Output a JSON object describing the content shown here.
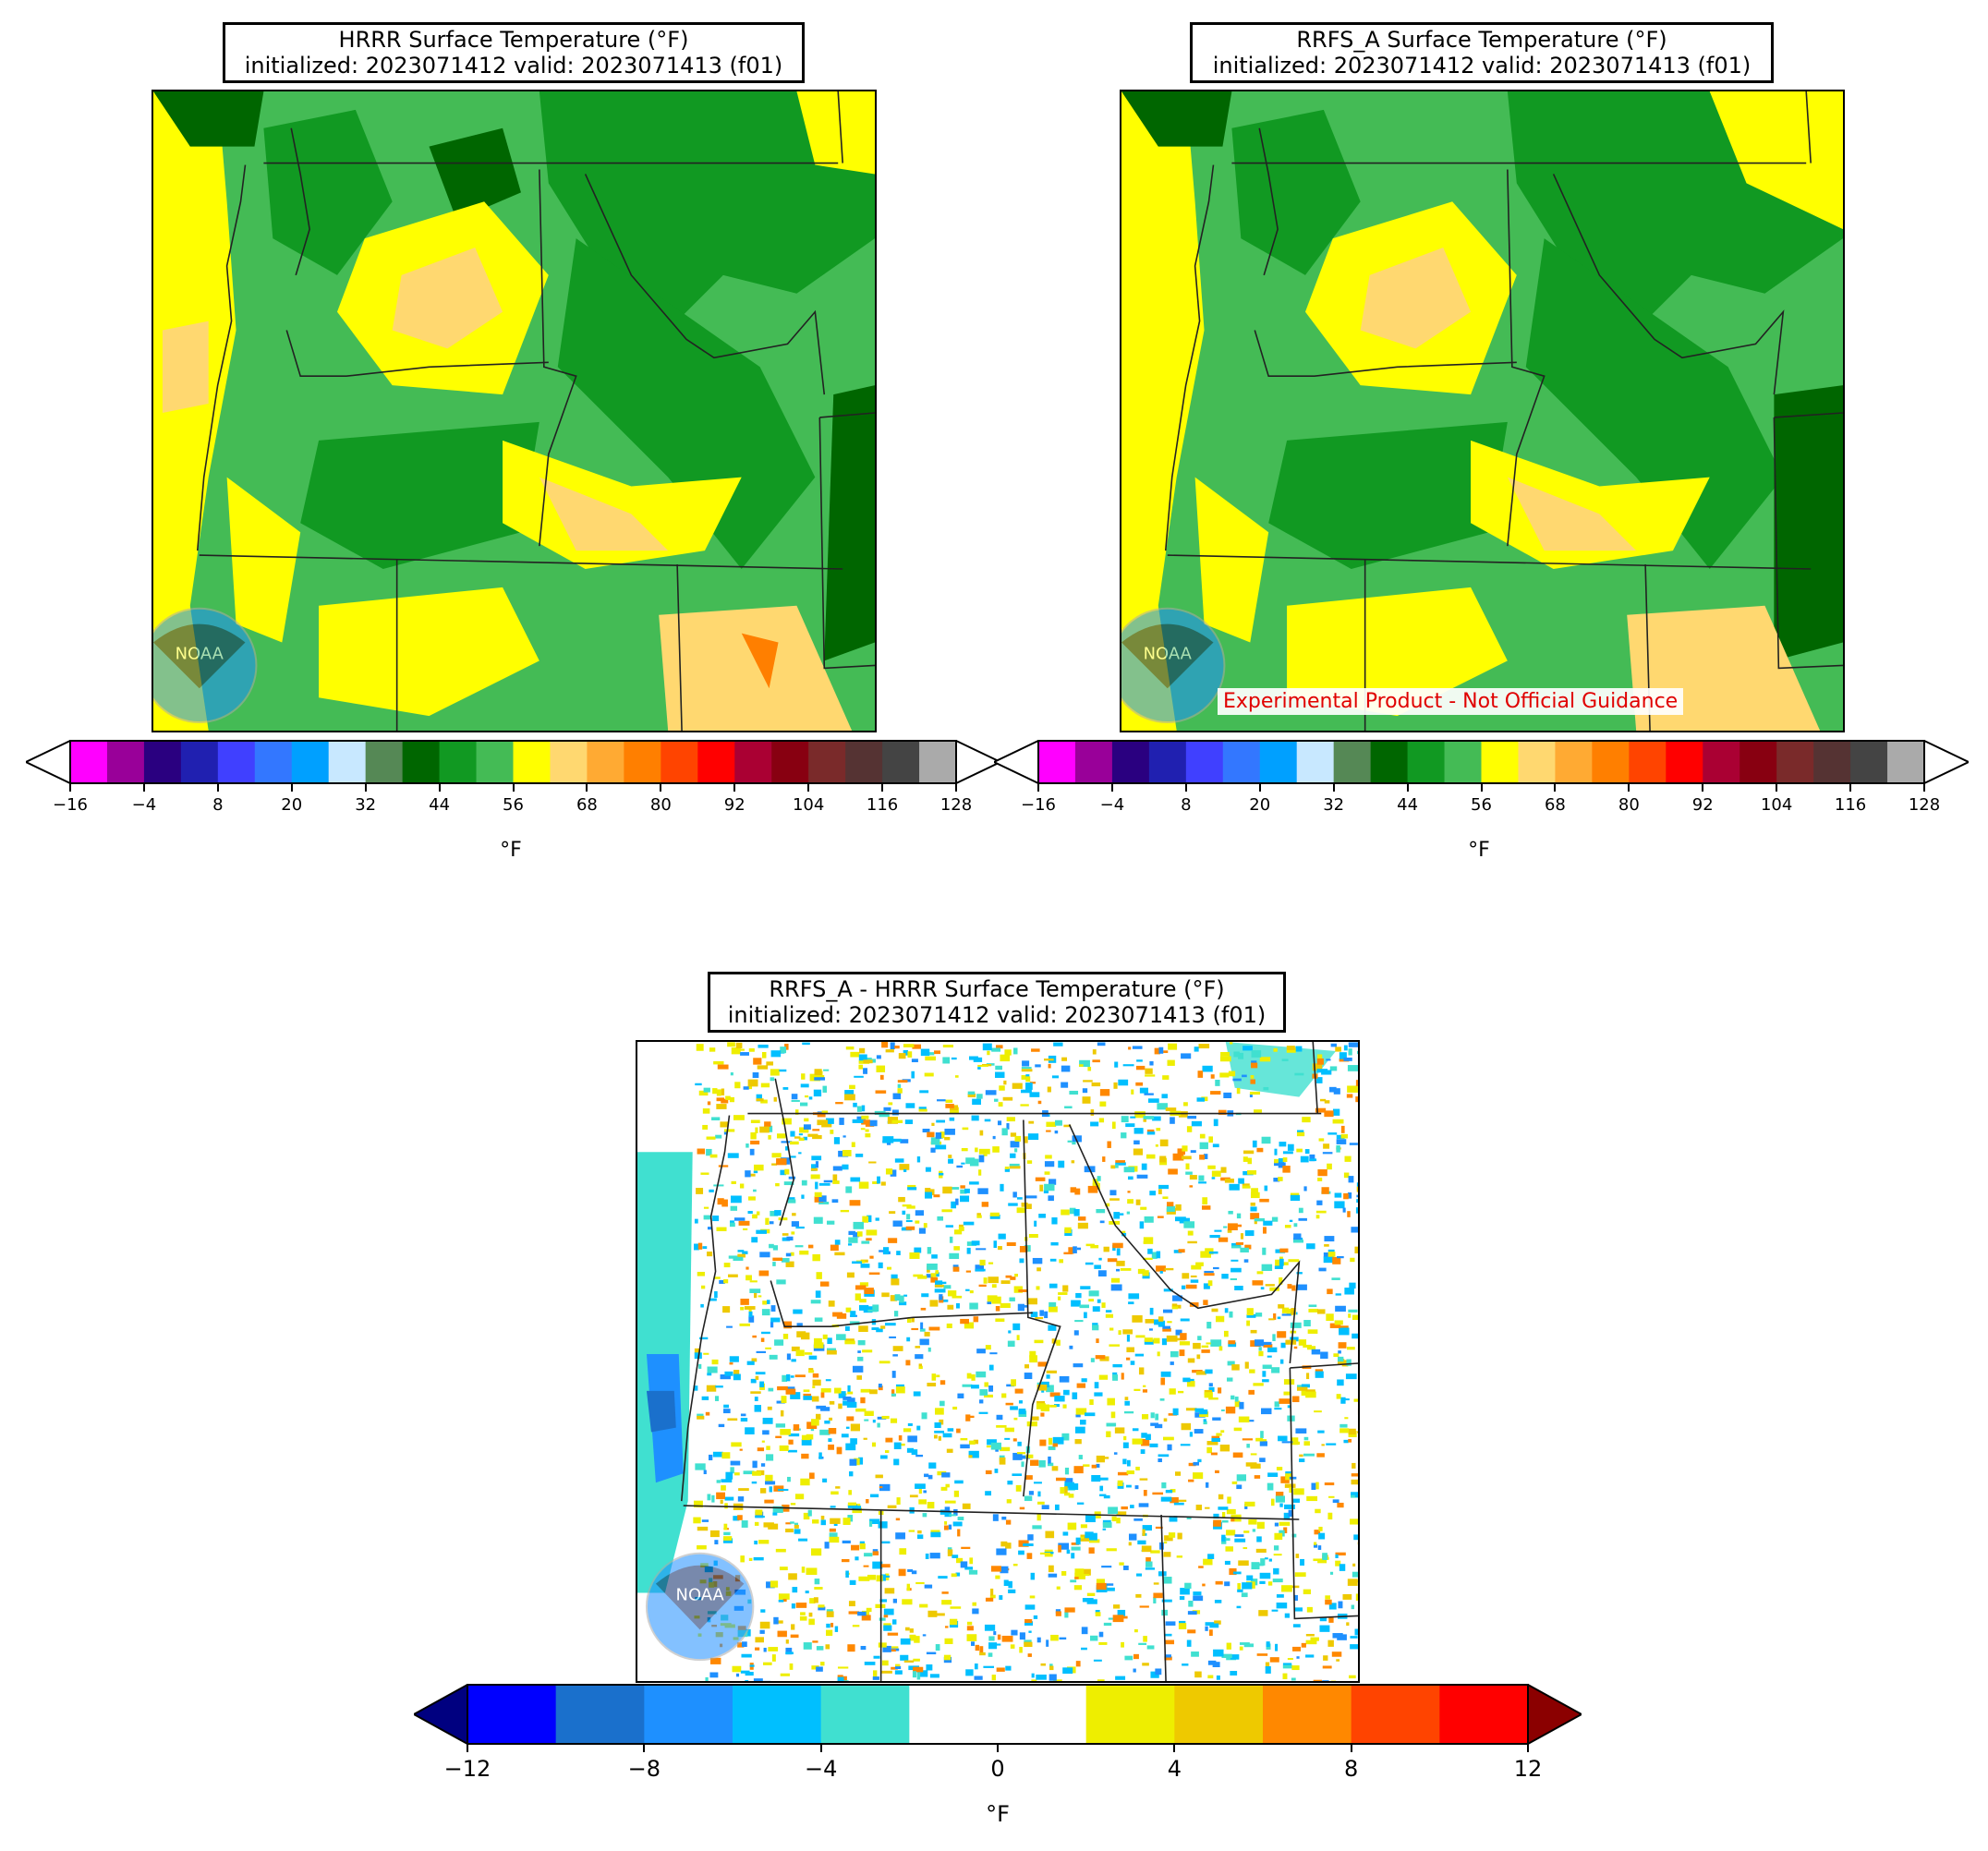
{
  "panels": {
    "hrrr": {
      "title": "HRRR Surface Temperature (°F)",
      "subtitle": "initialized: 2023071412 valid: 2023071413 (f01)"
    },
    "rrfs": {
      "title": "RRFS_A Surface Temperature (°F)",
      "subtitle": "initialized: 2023071412 valid: 2023071413 (f01)",
      "disclaimer": "Experimental Product - Not Official Guidance"
    },
    "diff": {
      "title": "RRFS_A - HRRR Surface Temperature (°F)",
      "subtitle": "initialized: 2023071412 valid: 2023071413 (f01)"
    }
  },
  "logo": {
    "text": "NOAA",
    "icon": "noaa-logo-icon"
  },
  "temp_colorbar": {
    "ticks": [
      "−16",
      "−4",
      "8",
      "20",
      "32",
      "44",
      "56",
      "68",
      "80",
      "92",
      "104",
      "116",
      "128"
    ],
    "unit": "°F",
    "colors": [
      "#ff00ff",
      "#990099",
      "#2a0080",
      "#2020b0",
      "#4040ff",
      "#3377ff",
      "#00a0ff",
      "#c8e8ff",
      "#558855",
      "#006600",
      "#119922",
      "#44bb55",
      "#ffff00",
      "#ffd870",
      "#ffaa33",
      "#ff7f00",
      "#ff4400",
      "#ff0000",
      "#aa0033",
      "#880011",
      "#7a2a2a",
      "#553333",
      "#444444",
      "#aaaaaa"
    ],
    "under_color": "#ffffff",
    "over_color": "#ffffff"
  },
  "diff_colorbar": {
    "ticks": [
      "−12",
      "−8",
      "−4",
      "0",
      "4",
      "8",
      "12"
    ],
    "unit": "°F",
    "colors": [
      "#0000ff",
      "#1a70cc",
      "#1e90ff",
      "#00bfff",
      "#40e0d0",
      "#ffffff",
      "#ffffff",
      "#eeee00",
      "#eec900",
      "#ff8800",
      "#ff4400",
      "#ff0000"
    ],
    "under_color": "#000080",
    "over_color": "#8b0000"
  }
}
